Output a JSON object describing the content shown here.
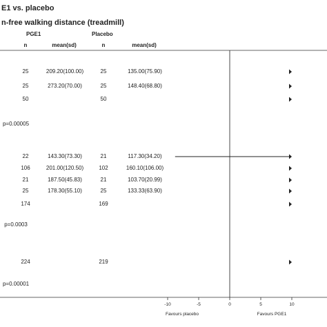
{
  "chart_data": {
    "type": "forest",
    "title_line1": "E1 vs. placebo",
    "title_line2": "n-free walking distance (treadmill)",
    "group_labels": [
      "PGE1",
      "Placebo"
    ],
    "columns": [
      "n",
      "mean(sd)",
      "n",
      "mean(sd)"
    ],
    "rows": [
      {
        "kind": "study",
        "pge1_n": "25",
        "pge1_mean": "209.20(100.00)",
        "pbo_n": "25",
        "pbo_mean": "135.00(75.90)",
        "arrow": true
      },
      {
        "kind": "study",
        "pge1_n": "25",
        "pge1_mean": "273.20(70.00)",
        "pbo_n": "25",
        "pbo_mean": "148.40(68.80)",
        "arrow": true
      },
      {
        "kind": "subtotal",
        "pge1_n": "50",
        "pge1_mean": "",
        "pbo_n": "50",
        "pbo_mean": "",
        "arrow": true
      },
      {
        "kind": "pvalue",
        "text": "p=0.00005"
      },
      {
        "kind": "study",
        "pge1_n": "22",
        "pge1_mean": "143.30(73.30)",
        "pbo_n": "21",
        "pbo_mean": "117.30(34.20)",
        "arrow": true,
        "ci_low": -8.8
      },
      {
        "kind": "study",
        "pge1_n": "106",
        "pge1_mean": "201.00(120.50)",
        "pbo_n": "102",
        "pbo_mean": "160.10(106.00)",
        "arrow": true
      },
      {
        "kind": "study",
        "pge1_n": "21",
        "pge1_mean": "187.50(45.83)",
        "pbo_n": "21",
        "pbo_mean": "103.70(20.99)",
        "arrow": true
      },
      {
        "kind": "study",
        "pge1_n": "25",
        "pge1_mean": "178.30(55.10)",
        "pbo_n": "25",
        "pbo_mean": "133.33(63.90)",
        "arrow": true
      },
      {
        "kind": "subtotal",
        "pge1_n": "174",
        "pge1_mean": "",
        "pbo_n": "169",
        "pbo_mean": "",
        "arrow": true
      },
      {
        "kind": "pvalue",
        "text": "p=0.0003"
      },
      {
        "kind": "total",
        "pge1_n": "224",
        "pge1_mean": "",
        "pbo_n": "219",
        "pbo_mean": "",
        "arrow": true
      },
      {
        "kind": "pvalue",
        "text": "p=0.00001"
      }
    ],
    "x_ticks": [
      "-10",
      "-5",
      "0",
      "5",
      "10"
    ],
    "x_tick_values": [
      -10,
      -5,
      0,
      5,
      10
    ],
    "xlim": [
      -10,
      10
    ],
    "xlabel_left": "Favours placebo",
    "xlabel_right": "Favours PGE1",
    "colors": {
      "ink": "#222222",
      "axis": "#333333"
    }
  }
}
